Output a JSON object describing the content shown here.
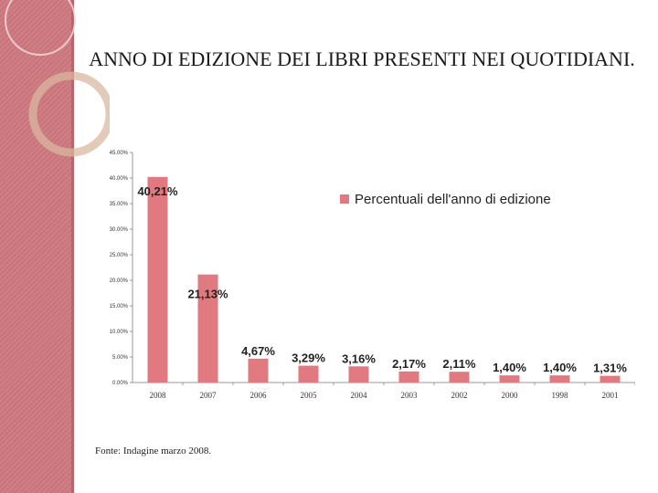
{
  "slide": {
    "title": "ANNO DI EDIZIONE DEI LIBRI PRESENTI NEI QUOTIDIANI.",
    "source": "Fonte: Indagine marzo 2008."
  },
  "colors": {
    "bar": "#e07a80",
    "sidebar": "#c8747a",
    "axis": "#999999"
  },
  "chart_data": {
    "type": "bar",
    "title": "",
    "xlabel": "",
    "ylabel": "",
    "categories": [
      "2008",
      "2007",
      "2006",
      "2005",
      "2004",
      "2003",
      "2002",
      "2000",
      "1998",
      "2001"
    ],
    "series": [
      {
        "name": "Percentuali dell'anno di edizione",
        "values": [
          40.21,
          21.13,
          4.67,
          3.29,
          3.16,
          2.17,
          2.11,
          1.4,
          1.4,
          1.31
        ],
        "labels": [
          "40,21%",
          "21,13%",
          "4,67%",
          "3,29%",
          "3,16%",
          "2,17%",
          "2,11%",
          "1,40%",
          "1,40%",
          "1,31%"
        ]
      }
    ],
    "ylim": [
      0,
      45
    ],
    "yticks": [
      0,
      5,
      10,
      15,
      20,
      25,
      30,
      35,
      40,
      45
    ],
    "ytick_labels": [
      "0.00%",
      "5.00%",
      "10.00%",
      "15.00%",
      "20.00%",
      "25.00%",
      "30.00%",
      "35.00%",
      "40.00%",
      "45.00%"
    ],
    "legend_position": "top-right",
    "grid": false
  }
}
